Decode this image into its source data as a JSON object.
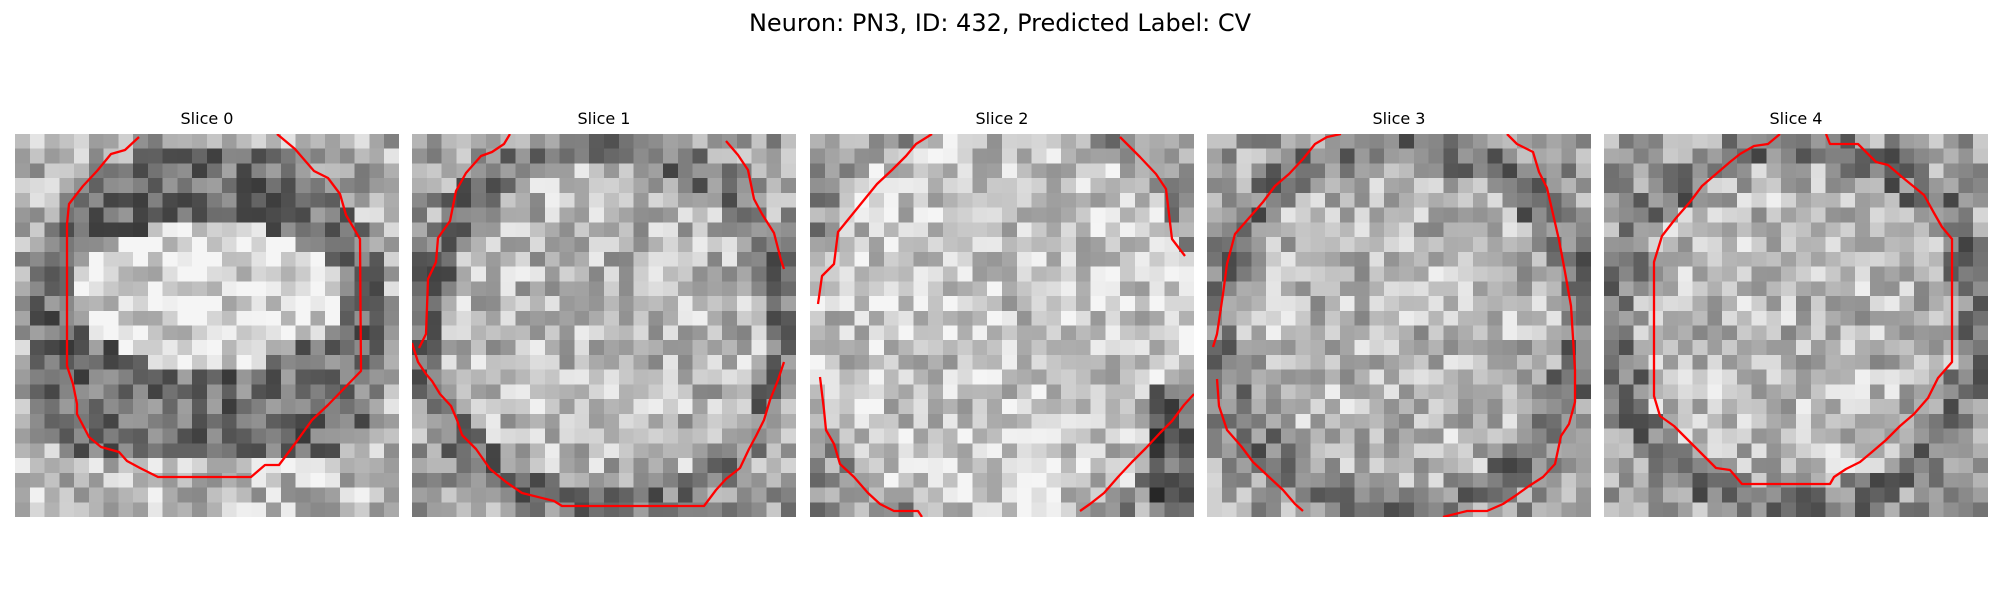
{
  "figure": {
    "title": "Neuron: PN3, ID: 432, Predicted Label: CV"
  },
  "panels": [
    {
      "title": "Slice 0",
      "contour_color": "#ff0000"
    },
    {
      "title": "Slice 1",
      "contour_color": "#ff0000"
    },
    {
      "title": "Slice 2",
      "contour_color": "#ff0000"
    },
    {
      "title": "Slice 3",
      "contour_color": "#ff0000"
    },
    {
      "title": "Slice 4",
      "contour_color": "#ff0000"
    }
  ],
  "image_style": {
    "colormap": "gray"
  }
}
